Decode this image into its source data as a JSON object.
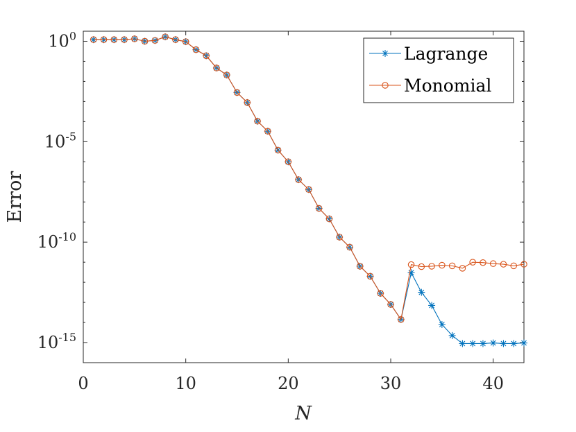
{
  "chart_data": {
    "type": "line",
    "title": "",
    "xlabel": "N",
    "ylabel": "Error",
    "xlim": [
      0,
      43
    ],
    "ylim_log10": [
      -16,
      0.5
    ],
    "y_scale": "log",
    "x_ticks": [
      0,
      10,
      20,
      30,
      40
    ],
    "x_tick_labels": [
      "0",
      "10",
      "20",
      "30",
      "40"
    ],
    "y_ticks_log10": [
      0,
      -5,
      -10,
      -15
    ],
    "y_tick_labels": [
      {
        "base": "10",
        "exp": "0"
      },
      {
        "base": "10",
        "exp": "-5"
      },
      {
        "base": "10",
        "exp": "-10"
      },
      {
        "base": "10",
        "exp": "-15"
      }
    ],
    "grid": false,
    "legend_position": "top-right",
    "x": [
      1,
      2,
      3,
      4,
      5,
      6,
      7,
      8,
      9,
      10,
      11,
      12,
      13,
      14,
      15,
      16,
      17,
      18,
      19,
      20,
      21,
      22,
      23,
      24,
      25,
      26,
      27,
      28,
      29,
      30,
      31,
      32,
      33,
      34,
      35,
      36,
      37,
      38,
      39,
      40,
      41,
      42,
      43
    ],
    "series": [
      {
        "name": "Lagrange",
        "color": "#0072BD",
        "marker": "asterisk",
        "log10_values": [
          0.08,
          0.08,
          0.08,
          0.08,
          0.12,
          0.0,
          0.04,
          0.22,
          0.08,
          -0.02,
          -0.42,
          -0.72,
          -1.33,
          -1.68,
          -2.55,
          -3.05,
          -3.98,
          -4.48,
          -5.42,
          -6.0,
          -6.89,
          -7.38,
          -8.32,
          -8.84,
          -9.75,
          -10.25,
          -11.2,
          -11.7,
          -12.55,
          -13.1,
          -13.85,
          -11.52,
          -12.5,
          -13.15,
          -14.1,
          -14.65,
          -15.05,
          -15.05,
          -15.05,
          -15.02,
          -15.05,
          -15.05,
          -15.02
        ]
      },
      {
        "name": "Monomial",
        "color": "#D95319",
        "marker": "circle",
        "log10_values": [
          0.08,
          0.08,
          0.08,
          0.08,
          0.12,
          0.0,
          0.04,
          0.22,
          0.08,
          -0.02,
          -0.42,
          -0.72,
          -1.33,
          -1.68,
          -2.55,
          -3.05,
          -3.98,
          -4.48,
          -5.42,
          -6.0,
          -6.89,
          -7.38,
          -8.32,
          -8.84,
          -9.75,
          -10.25,
          -11.2,
          -11.7,
          -12.55,
          -13.1,
          -13.85,
          -11.12,
          -11.22,
          -11.2,
          -11.15,
          -11.18,
          -11.3,
          -11.0,
          -11.02,
          -11.07,
          -11.1,
          -11.18,
          -11.1
        ]
      }
    ]
  }
}
